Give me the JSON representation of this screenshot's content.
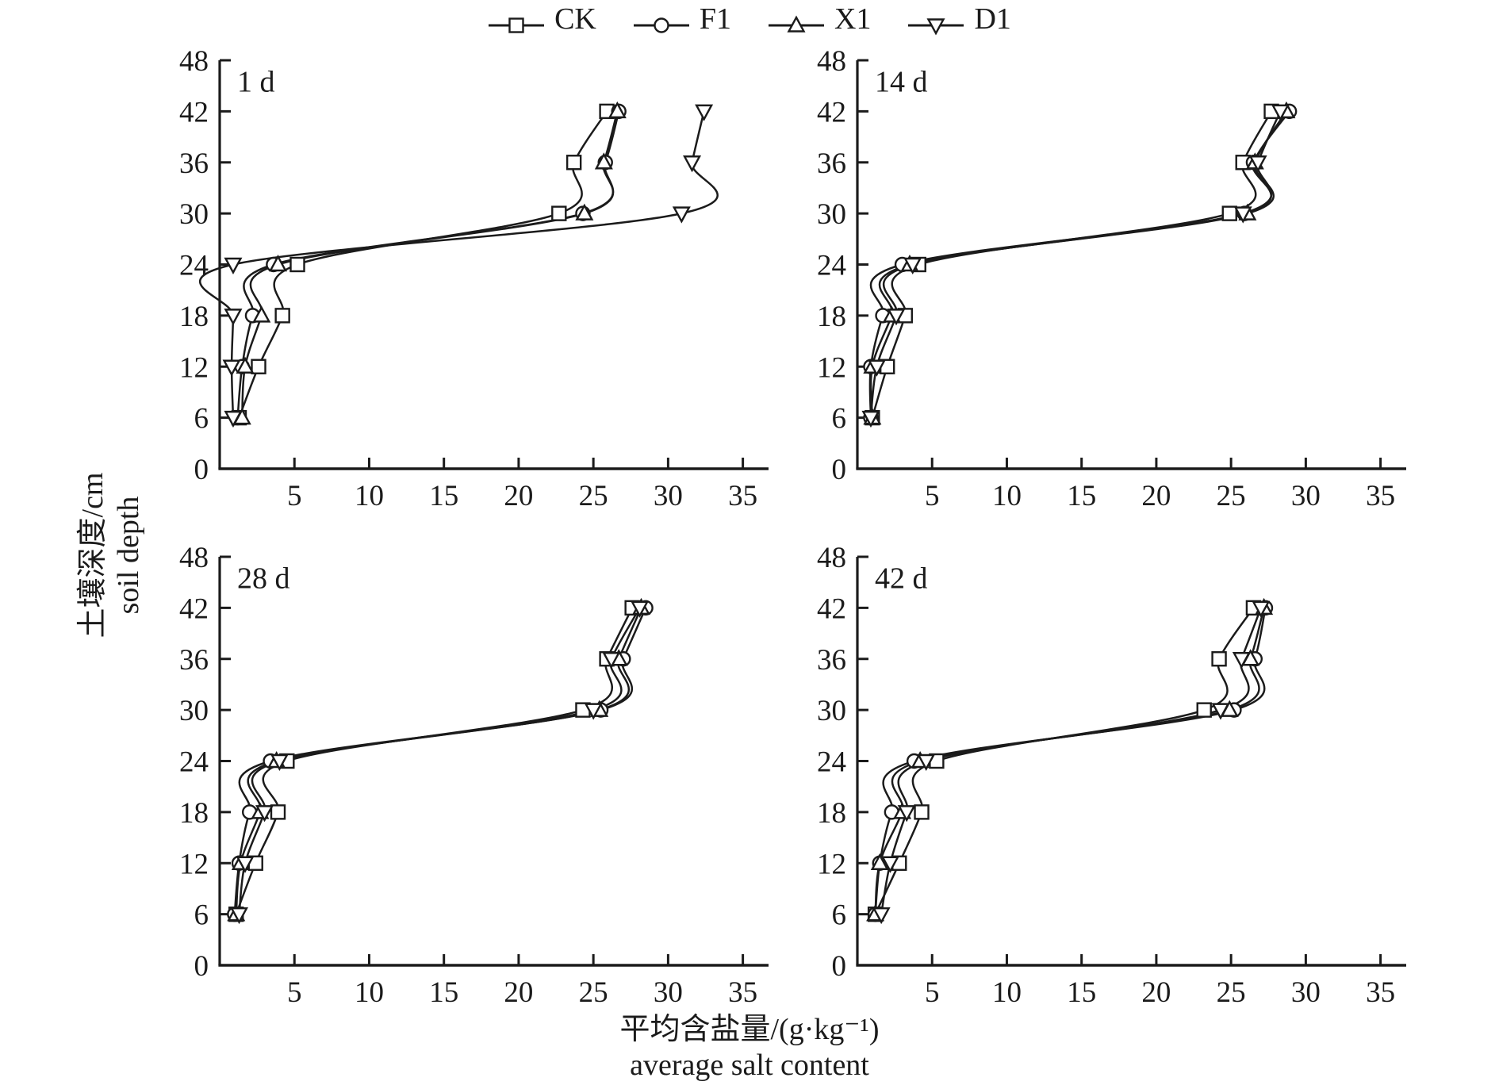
{
  "style": {
    "ink": "#1b1b1b",
    "marker_fill": "#ffffff",
    "background": "#ffffff"
  },
  "legend": {
    "items": [
      {
        "label": "CK",
        "marker": "square"
      },
      {
        "label": "F1",
        "marker": "circle"
      },
      {
        "label": "X1",
        "marker": "triangle-up"
      },
      {
        "label": "D1",
        "marker": "triangle-down"
      }
    ]
  },
  "axes": {
    "y_label_zh": "土壤深度/cm",
    "y_label_en": "soil depth",
    "x_label_zh": "平均含盐量/(g·kg⁻¹)",
    "x_label_en": "average salt content",
    "x_ticks": [
      5,
      10,
      15,
      20,
      25,
      30,
      35
    ],
    "y_ticks": [
      0,
      6,
      12,
      18,
      24,
      30,
      36,
      42,
      48
    ],
    "x_range": [
      0,
      36.4
    ],
    "y_range": [
      0,
      48
    ],
    "grid": false,
    "legend_position": "top-center"
  },
  "chart_data": [
    {
      "type": "line",
      "title": "1 d",
      "xlabel": "平均含盐量/(g·kg⁻¹) average salt content",
      "ylabel": "土壤深度/cm soil depth",
      "depths_cm": [
        6,
        12,
        18,
        24,
        30,
        36,
        42
      ],
      "series": [
        {
          "name": "CK",
          "marker": "square",
          "values": [
            1.3,
            2.6,
            4.2,
            5.2,
            22.7,
            23.7,
            25.9
          ]
        },
        {
          "name": "F1",
          "marker": "circle",
          "values": [
            1.2,
            1.5,
            2.2,
            3.6,
            24.3,
            25.8,
            26.7
          ]
        },
        {
          "name": "X1",
          "marker": "triangle-up",
          "values": [
            1.5,
            1.7,
            2.8,
            3.9,
            24.4,
            25.7,
            26.6
          ]
        },
        {
          "name": "D1",
          "marker": "triangle-down",
          "values": [
            0.9,
            0.8,
            0.9,
            0.9,
            30.9,
            31.6,
            32.4
          ]
        }
      ]
    },
    {
      "type": "line",
      "title": "14 d",
      "xlabel": "平均含盐量/(g·kg⁻¹) average salt content",
      "ylabel": "土壤深度/cm soil depth",
      "depths_cm": [
        6,
        12,
        18,
        24,
        30,
        36,
        42
      ],
      "series": [
        {
          "name": "CK",
          "marker": "square",
          "values": [
            1.0,
            2.0,
            3.2,
            4.1,
            24.9,
            25.8,
            27.7
          ]
        },
        {
          "name": "F1",
          "marker": "circle",
          "values": [
            0.9,
            0.9,
            1.7,
            3.0,
            25.9,
            26.5,
            28.9
          ]
        },
        {
          "name": "X1",
          "marker": "triangle-up",
          "values": [
            1.0,
            1.0,
            2.3,
            3.5,
            26.1,
            26.6,
            28.7
          ]
        },
        {
          "name": "D1",
          "marker": "triangle-down",
          "values": [
            0.9,
            1.3,
            2.6,
            3.7,
            25.8,
            26.8,
            28.3
          ]
        }
      ]
    },
    {
      "type": "line",
      "title": "28 d",
      "xlabel": "平均含盐量/(g·kg⁻¹) average salt content",
      "ylabel": "土壤深度/cm soil depth",
      "depths_cm": [
        6,
        12,
        18,
        24,
        30,
        36,
        42
      ],
      "series": [
        {
          "name": "CK",
          "marker": "square",
          "values": [
            1.1,
            2.4,
            3.9,
            4.5,
            24.3,
            25.9,
            27.6
          ]
        },
        {
          "name": "F1",
          "marker": "circle",
          "values": [
            1.0,
            1.3,
            2.0,
            3.4,
            25.5,
            27.0,
            28.5
          ]
        },
        {
          "name": "X1",
          "marker": "triangle-up",
          "values": [
            1.1,
            1.4,
            2.7,
            3.8,
            25.4,
            26.7,
            28.2
          ]
        },
        {
          "name": "D1",
          "marker": "triangle-down",
          "values": [
            1.3,
            1.7,
            3.0,
            4.0,
            25.0,
            26.2,
            28.1
          ]
        }
      ]
    },
    {
      "type": "line",
      "title": "42 d",
      "xlabel": "平均含盐量/(g·kg⁻¹) average salt content",
      "ylabel": "土壤深度/cm soil depth",
      "depths_cm": [
        6,
        12,
        18,
        24,
        30,
        36,
        42
      ],
      "series": [
        {
          "name": "CK",
          "marker": "square",
          "values": [
            1.2,
            2.8,
            4.3,
            5.3,
            23.2,
            24.2,
            26.5
          ]
        },
        {
          "name": "F1",
          "marker": "circle",
          "values": [
            1.2,
            1.5,
            2.3,
            3.8,
            25.2,
            26.6,
            27.3
          ]
        },
        {
          "name": "X1",
          "marker": "triangle-up",
          "values": [
            1.2,
            1.5,
            3.0,
            4.2,
            24.9,
            26.3,
            27.2
          ]
        },
        {
          "name": "D1",
          "marker": "triangle-down",
          "values": [
            1.6,
            2.2,
            3.3,
            4.6,
            24.3,
            25.7,
            27.0
          ]
        }
      ]
    }
  ]
}
